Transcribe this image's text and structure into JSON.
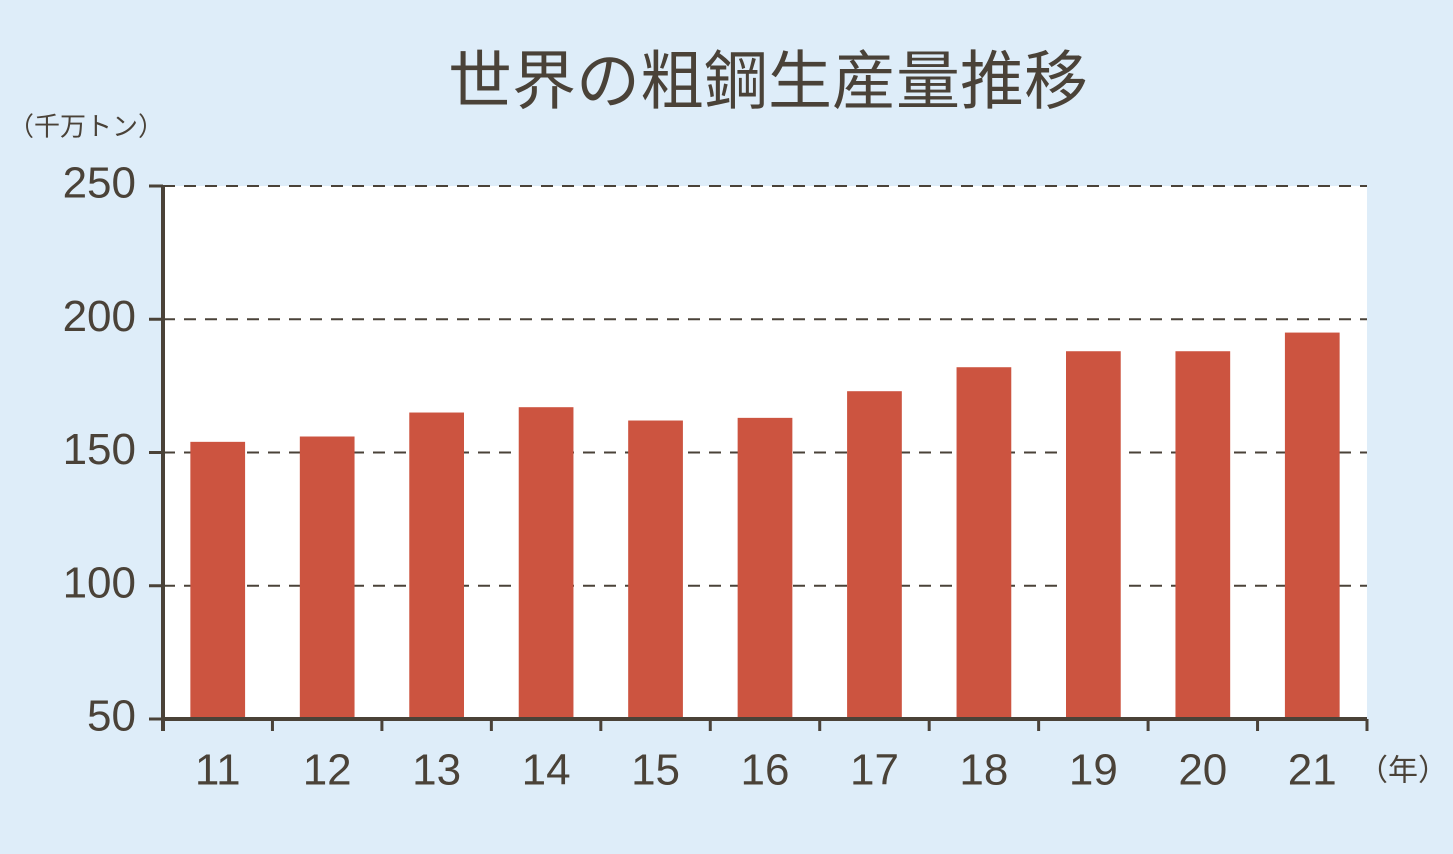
{
  "chart_data": {
    "type": "bar",
    "title": "世界の粗鋼生産量推移",
    "y_label": "（千万トン）",
    "x_label": "（年）",
    "categories": [
      "11",
      "12",
      "13",
      "14",
      "15",
      "16",
      "17",
      "18",
      "19",
      "20",
      "21"
    ],
    "values": [
      154,
      156,
      165,
      167,
      162,
      163,
      173,
      182,
      188,
      188,
      195
    ],
    "color": "#cc5440",
    "ylim": [
      50,
      250
    ],
    "yticks": [
      50,
      100,
      150,
      200,
      250
    ],
    "grid": true
  }
}
